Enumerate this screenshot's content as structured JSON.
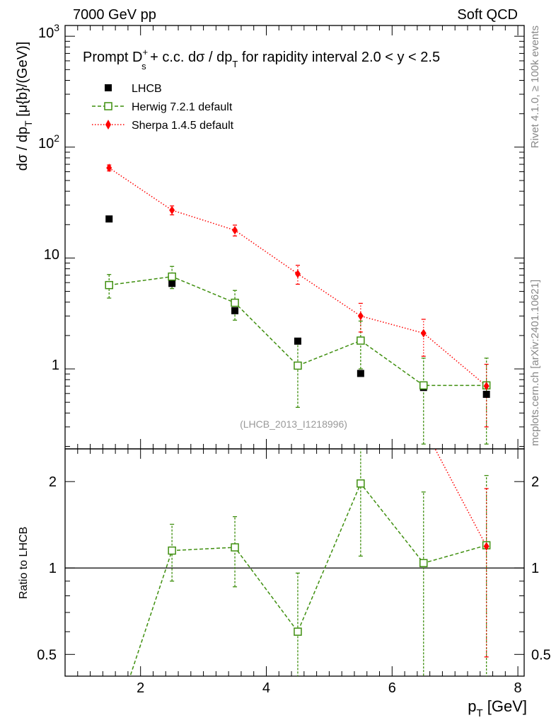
{
  "header": {
    "left": "7000 GeV pp",
    "right": "Soft QCD"
  },
  "side_text": {
    "rivet": "Rivet 4.1.0, ≥ 100k events",
    "mcplots": "mcplots.cern.ch [arXiv:2401.10621]"
  },
  "chart_data": [
    {
      "type": "scatter",
      "title": "Prompt D_s^+ + c.c.  dσ / dp_T for rapidity interval 2.0 < y < 2.5",
      "title_parts": {
        "main": "Prompt D",
        "sup": "+",
        "sub": "s",
        "cc": " + c.c.  dσ / dp",
        "sub_T": "T",
        "tail": " for rapidity interval 2.0 < y < 2.5"
      },
      "ylabel": "dσ / dp_T [μ{b}/(GeV)]",
      "ylabel_parts": {
        "main": "dσ / dp",
        "sub": "T",
        "tail": " [μ{b}/(GeV)]"
      },
      "yscale": "log",
      "xlim": [
        0.8,
        8.1
      ],
      "ylim": [
        0.19,
        1250
      ],
      "y_tick_labels": [
        "1",
        "10",
        "10^2",
        "10^3"
      ],
      "watermark": "(LHCB_2013_I1218996)",
      "legend_position": "top-left",
      "series": [
        {
          "name": "LHCB",
          "style": "data",
          "color": "#000000",
          "x": [
            1.5,
            2.5,
            3.5,
            4.5,
            5.5,
            6.5,
            7.5
          ],
          "y": [
            22.5,
            5.9,
            3.35,
            1.78,
            0.91,
            0.68,
            0.59
          ]
        },
        {
          "name": "Herwig 7.2.1 default",
          "style": "dashed-open-square",
          "color": "#3f8f0f",
          "x": [
            1.5,
            2.5,
            3.5,
            4.5,
            5.5,
            6.5,
            7.5
          ],
          "y": [
            5.7,
            6.8,
            3.95,
            1.07,
            1.8,
            0.71,
            0.71
          ],
          "y_low": [
            4.35,
            5.3,
            2.75,
            0.45,
            1.0,
            0.21,
            0.21
          ],
          "y_high": [
            7.1,
            8.4,
            5.1,
            1.7,
            2.7,
            1.25,
            1.25
          ]
        },
        {
          "name": "Sherpa 1.4.5 default",
          "style": "dotted-diamond",
          "color": "#ff0000",
          "x": [
            1.5,
            2.5,
            3.5,
            4.5,
            5.5,
            6.5,
            7.5
          ],
          "y": [
            65,
            27,
            17.8,
            7.2,
            3.0,
            2.1,
            0.7
          ],
          "y_low": [
            61,
            24.5,
            15.8,
            5.8,
            2.15,
            1.3,
            0.3
          ],
          "y_high": [
            69,
            29.5,
            19.8,
            8.6,
            3.9,
            2.8,
            1.1
          ]
        }
      ]
    },
    {
      "type": "line",
      "title": "",
      "ylabel": "Ratio to LHCB",
      "xlabel": "p_T [GeV]",
      "xlabel_parts": {
        "main": "p",
        "sub": "T",
        "tail": " [GeV]"
      },
      "yscale": "log",
      "xlim": [
        0.8,
        8.1
      ],
      "ylim": [
        0.42,
        2.6
      ],
      "x_tick_labels": [
        "2",
        "4",
        "6",
        "8"
      ],
      "y_tick_labels": [
        "0.5",
        "1",
        "2"
      ],
      "reference_line": 1,
      "series": [
        {
          "name": "Herwig 7.2.1 default",
          "color": "#3f8f0f",
          "x": [
            1.5,
            2.5,
            3.5,
            4.5,
            5.5,
            6.5,
            7.5
          ],
          "y": [
            0.253,
            1.15,
            1.18,
            0.6,
            1.97,
            1.04,
            1.2
          ],
          "y_low": [
            null,
            0.9,
            0.86,
            0.25,
            1.1,
            0.3,
            0.36
          ],
          "y_high": [
            null,
            1.42,
            1.51,
            0.96,
            2.95,
            1.84,
            2.1
          ]
        },
        {
          "name": "Sherpa 1.4.5 default",
          "color": "#ff0000",
          "x": [
            6.5,
            7.5
          ],
          "y": [
            3.1,
            1.19
          ],
          "y_low": [
            null,
            0.49
          ],
          "y_high": [
            null,
            1.89
          ]
        }
      ]
    }
  ]
}
